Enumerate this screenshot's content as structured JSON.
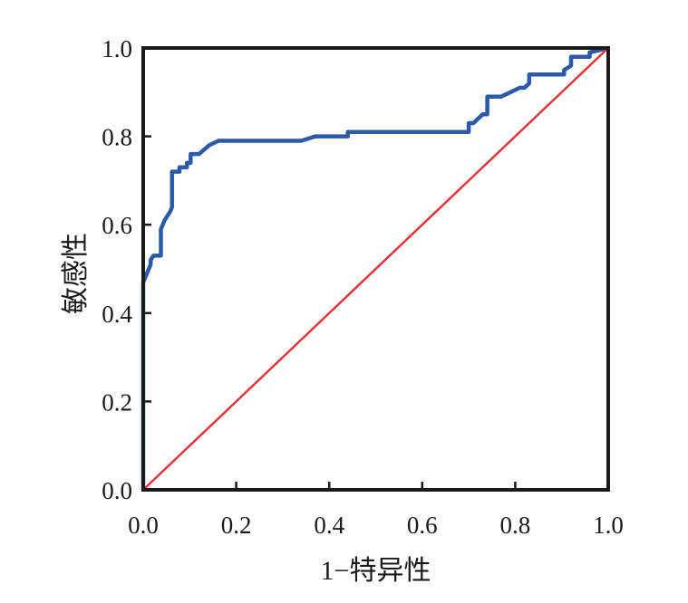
{
  "chart_data": {
    "type": "line",
    "title": "",
    "xlabel": "1−特异性",
    "ylabel": "敏感性",
    "xlim": [
      0,
      1
    ],
    "ylim": [
      0,
      1
    ],
    "grid": false,
    "legend": "none",
    "x_ticks": [
      "0.0",
      "0.2",
      "0.4",
      "0.6",
      "0.8",
      "1.0"
    ],
    "y_ticks": [
      "0.0",
      "0.2",
      "0.4",
      "0.6",
      "0.8",
      "1.0"
    ],
    "x_tick_values": [
      0,
      0.2,
      0.4,
      0.6,
      0.8,
      1.0
    ],
    "y_tick_values": [
      0,
      0.2,
      0.4,
      0.6,
      0.8,
      1.0
    ],
    "series": [
      {
        "color": "#2a5aa8",
        "x": [
          0,
          0,
          0.004,
          0.012,
          0.016,
          0.016,
          0.022,
          0.03,
          0.038,
          0.038,
          0.046,
          0.058,
          0.062,
          0.062,
          0.078,
          0.078,
          0.094,
          0.094,
          0.102,
          0.102,
          0.12,
          0.142,
          0.162,
          0.34,
          0.37,
          0.44,
          0.44,
          0.7,
          0.7,
          0.71,
          0.72,
          0.73,
          0.74,
          0.74,
          0.77,
          0.79,
          0.81,
          0.82,
          0.83,
          0.83,
          0.905,
          0.905,
          0.92,
          0.92,
          0.96,
          0.96,
          1.0
        ],
        "y": [
          0,
          0.47,
          0.48,
          0.5,
          0.51,
          0.52,
          0.53,
          0.53,
          0.53,
          0.59,
          0.61,
          0.63,
          0.64,
          0.72,
          0.72,
          0.73,
          0.73,
          0.74,
          0.74,
          0.76,
          0.76,
          0.78,
          0.79,
          0.79,
          0.8,
          0.8,
          0.81,
          0.81,
          0.83,
          0.83,
          0.84,
          0.85,
          0.85,
          0.89,
          0.89,
          0.9,
          0.91,
          0.91,
          0.92,
          0.94,
          0.94,
          0.95,
          0.96,
          0.98,
          0.98,
          0.99,
          1.0
        ]
      },
      {
        "color": "#e0353a",
        "x": [
          0,
          1
        ],
        "y": [
          0,
          1
        ]
      }
    ]
  }
}
